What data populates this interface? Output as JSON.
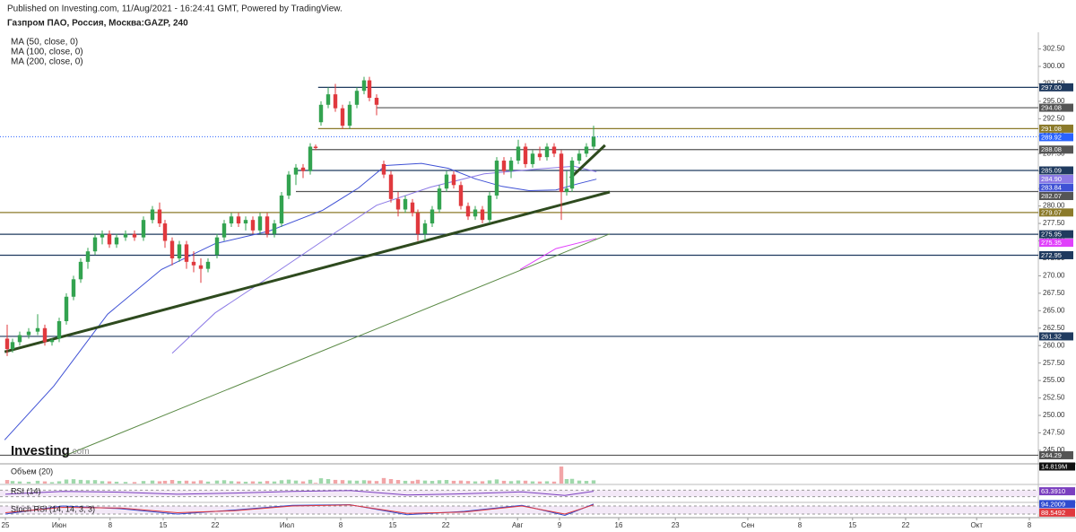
{
  "header": {
    "published": "Published on Investing.com, 11/Aug/2021 - 16:24:41 GMT, Powered by TradingView.",
    "symbol": "Газпром ПАО, Россия, Москва:GAZP, 240",
    "indicators": [
      "MA (50, close, 0)",
      "MA (100, close, 0)",
      "MA (200, close, 0)"
    ]
  },
  "logo": {
    "name": "Investing",
    "suffix": ".com"
  },
  "chart_data": {
    "type": "candlestick",
    "up_color": "#33a350",
    "down_color": "#e0393e",
    "x": [
      0.25,
      1,
      2,
      3.25,
      4.5,
      5.5,
      6.5,
      7.5,
      8.5,
      9.5,
      10.5,
      11.5,
      12.5,
      13.5,
      14.5,
      15.5,
      16.75,
      18,
      19.25,
      20.5,
      21.5,
      22.25,
      23.25,
      24.25,
      25.25,
      26.25,
      27.25,
      28.25,
      29.5,
      30.5,
      31.5,
      32.5,
      33.5,
      34.5,
      35.5,
      36.5,
      37.5,
      38.5,
      39.5,
      40.5,
      41.5,
      42.5,
      43.25,
      44,
      45,
      46,
      47,
      48,
      49,
      50,
      50.75,
      51.75,
      52.75,
      53.75,
      54.75,
      55.75,
      56.75,
      57.5,
      58.5,
      59.5,
      60.5,
      61.5,
      62.5,
      63.5,
      64.5,
      65.5,
      66.5,
      67.5,
      68.5,
      69.5,
      70.5,
      71.5,
      72.5,
      73.5,
      74.5,
      75.5,
      76.5,
      77.5,
      78.25,
      79,
      80,
      81,
      82
    ],
    "open": [
      261,
      259.5,
      260.5,
      261.5,
      262,
      262.5,
      260.5,
      261,
      263.5,
      267,
      269.5,
      272,
      273.5,
      275.5,
      276,
      274.5,
      275.5,
      276,
      275.5,
      278,
      279.5,
      277.5,
      275,
      272.5,
      274.5,
      272,
      271.5,
      271,
      273,
      275.5,
      277.5,
      278.5,
      277.5,
      278,
      276.5,
      278.5,
      276,
      277.5,
      281.5,
      284.5,
      285.5,
      285,
      288.5,
      292,
      294.5,
      296,
      294,
      291.5,
      294.5,
      296.5,
      298,
      295.5,
      286,
      284.5,
      281,
      279.5,
      280.5,
      279,
      276,
      277.5,
      279.5,
      282.5,
      284.5,
      283,
      280,
      278.5,
      279.5,
      278,
      281.5,
      286.5,
      285,
      286.5,
      288.5,
      286,
      287.5,
      287,
      288.5,
      287.5,
      282,
      282.5,
      286.5,
      287.5,
      288.5
    ],
    "high": [
      263,
      261,
      262,
      262.5,
      264.5,
      263,
      261,
      264,
      267.5,
      270,
      272.5,
      274,
      276,
      276.5,
      276.5,
      276,
      276.5,
      276.5,
      278.5,
      280,
      280.5,
      278,
      275.5,
      275,
      275,
      273.5,
      272.5,
      272.5,
      276,
      278,
      279,
      279,
      278.5,
      278.5,
      279,
      279,
      278,
      282,
      285,
      286,
      286,
      289,
      288.8,
      295,
      297,
      297.5,
      294.5,
      295,
      297,
      298.5,
      298.5,
      296,
      286.5,
      285,
      282,
      281.5,
      281,
      279.5,
      278,
      280,
      283,
      285,
      285,
      283.5,
      280.5,
      280,
      280,
      282,
      287,
      287,
      287,
      289.5,
      289,
      288,
      288.5,
      289,
      289,
      288,
      285,
      287,
      288,
      289,
      291.5
    ],
    "low": [
      258.5,
      259,
      260,
      261,
      261.5,
      260,
      260,
      260.5,
      263,
      266.5,
      269,
      271,
      273,
      274.5,
      274,
      274,
      275,
      275,
      275,
      277.5,
      277,
      274,
      271.5,
      272,
      271,
      270.5,
      269,
      270.5,
      272.5,
      275,
      277,
      277,
      276.5,
      276,
      276,
      275.5,
      275.5,
      277,
      281,
      283,
      284,
      284.5,
      288,
      291.5,
      294,
      293.5,
      291,
      291,
      294,
      296,
      295,
      293,
      284,
      280.5,
      278.5,
      279,
      278.5,
      275,
      275,
      277,
      279,
      282,
      282.5,
      279.5,
      278,
      278,
      277.5,
      277.5,
      281,
      284.5,
      284,
      286,
      285.5,
      285.5,
      286.5,
      286.5,
      287,
      278,
      281.5,
      282,
      286,
      287,
      288
    ],
    "close": [
      259.5,
      260.5,
      261.5,
      262,
      262.5,
      260.5,
      260.8,
      263.5,
      267,
      269.5,
      272,
      273.5,
      275.5,
      276,
      274.5,
      275.5,
      276,
      275.5,
      278,
      279.5,
      277.5,
      275,
      272.5,
      274.5,
      272,
      271.5,
      271,
      272,
      275.5,
      277.5,
      278.5,
      277.5,
      278,
      276.5,
      278.5,
      276,
      277.5,
      281.5,
      284.5,
      285.5,
      285,
      288.5,
      288.3,
      294.5,
      296,
      294,
      291.5,
      294.5,
      296.5,
      298,
      295.5,
      294.5,
      284.5,
      281,
      279.5,
      281,
      279,
      276,
      277.5,
      279.5,
      282.5,
      284.5,
      283,
      280,
      278.5,
      279.5,
      278,
      281.5,
      286.5,
      285,
      286.5,
      288.5,
      286,
      287.5,
      287,
      288.5,
      287.5,
      282,
      282.5,
      286.5,
      287.5,
      288.5,
      289.92
    ],
    "xlim": [
      -0.75,
      144
    ],
    "ylim": [
      243.32,
      304.37
    ],
    "xticks": [
      {
        "value": 0,
        "label": "25"
      },
      {
        "value": 7.5,
        "label": "Июн"
      },
      {
        "value": 14.6,
        "label": "8"
      },
      {
        "value": 22,
        "label": "15"
      },
      {
        "value": 29.25,
        "label": "22"
      },
      {
        "value": 39.25,
        "label": "Июл"
      },
      {
        "value": 46.75,
        "label": "8"
      },
      {
        "value": 54,
        "label": "15"
      },
      {
        "value": 61.4,
        "label": "22"
      },
      {
        "value": 71.4,
        "label": "Авг"
      },
      {
        "value": 77.25,
        "label": "9"
      },
      {
        "value": 85.5,
        "label": "16"
      },
      {
        "value": 93.4,
        "label": "23"
      },
      {
        "value": 103.5,
        "label": "Сен"
      },
      {
        "value": 110.75,
        "label": "8"
      },
      {
        "value": 118.1,
        "label": "15"
      },
      {
        "value": 125.5,
        "label": "22"
      },
      {
        "value": 135.4,
        "label": "Окт"
      },
      {
        "value": 142.75,
        "label": "8"
      }
    ],
    "yticks": [
      {
        "value": 245,
        "label": "245.00"
      },
      {
        "value": 247.5,
        "label": "247.50"
      },
      {
        "value": 250,
        "label": "250.00"
      },
      {
        "value": 252.5,
        "label": "252.50"
      },
      {
        "value": 255,
        "label": "255.00"
      },
      {
        "value": 257.5,
        "label": "257.50"
      },
      {
        "value": 260,
        "label": "260.00"
      },
      {
        "value": 262.5,
        "label": "262.50"
      },
      {
        "value": 265,
        "label": "265.00"
      },
      {
        "value": 267.5,
        "label": "267.50"
      },
      {
        "value": 270,
        "label": "270.00"
      },
      {
        "value": 272.5,
        "label": "272.50"
      },
      {
        "value": 275,
        "label": "275.00"
      },
      {
        "value": 277.5,
        "label": "277.50"
      },
      {
        "value": 280,
        "label": "280.00"
      },
      {
        "value": 282.5,
        "label": "282.50"
      },
      {
        "value": 285,
        "label": "285.00"
      },
      {
        "value": 287.5,
        "label": "287.50"
      },
      {
        "value": 290,
        "label": "290.00"
      },
      {
        "value": 292.5,
        "label": "292.50"
      },
      {
        "value": 295,
        "label": "295.00"
      },
      {
        "value": 297.5,
        "label": "297.50"
      },
      {
        "value": 300,
        "label": "300.00"
      },
      {
        "value": 302.5,
        "label": "302.50"
      }
    ],
    "moving_averages": [
      {
        "color": "#3f51d5",
        "x": [
          -0.1,
          6.75,
          14.25,
          21.75,
          29.25,
          36.75,
          44.25,
          49.25,
          53,
          58,
          61.75,
          65.5,
          69.25,
          73,
          76.75,
          79.9,
          82.4
        ],
        "values": [
          246.5,
          254.2,
          264.5,
          270.9,
          274.6,
          276.4,
          279.4,
          282.6,
          285.8,
          286.1,
          285.4,
          283.9,
          282.8,
          282.2,
          282.3,
          283.2,
          283.84
        ],
        "last_label": "283.84"
      },
      {
        "color": "#8c7ae6",
        "x": [
          23.25,
          29.25,
          36.75,
          44.25,
          51.75,
          59.25,
          66.75,
          74.25,
          79.25,
          82.4
        ],
        "values": [
          258.9,
          264.7,
          269.8,
          275,
          280.1,
          282.7,
          284.6,
          285.3,
          285.7,
          284.9
        ],
        "last_label": "284.90"
      },
      {
        "color": "#e040fb",
        "x": [
          71.75,
          76.75,
          82.4
        ],
        "values": [
          270.9,
          273.9,
          275.35
        ],
        "last_label": "275.35"
      }
    ],
    "levels": [
      {
        "value": 297,
        "label": "297.00",
        "color": "#1f3a5f",
        "x0": 43.6
      },
      {
        "value": 294.08,
        "label": "294.08",
        "color": "#555555",
        "x0": 51.75
      },
      {
        "value": 291.08,
        "label": "291.08",
        "color": "#8b7a2a",
        "x0": 43.6
      },
      {
        "value": 288.08,
        "label": "288.08",
        "color": "#555555",
        "x0": 42.4
      },
      {
        "value": 285.09,
        "label": "285.09",
        "color": "#1f3a5f",
        "x0": 40.5
      },
      {
        "value": 282.07,
        "label": "282.07",
        "color": "#555555",
        "x0": 40.5
      },
      {
        "value": 279.07,
        "label": "279.07",
        "color": "#8b7a2a",
        "x0": -0.75
      },
      {
        "value": 275.95,
        "label": "275.95",
        "color": "#1f3a5f",
        "x0": -0.75
      },
      {
        "value": 272.95,
        "label": "272.95",
        "color": "#1f3a5f",
        "x0": -0.75
      },
      {
        "value": 261.32,
        "label": "261.32",
        "color": "#1f3a5f",
        "x0": -0.75
      },
      {
        "value": 244.29,
        "label": "244.29",
        "color": "#555555",
        "x0": -0.75
      }
    ],
    "current": {
      "value": 289.92,
      "label": "289.92",
      "color": "#2962ff"
    },
    "trend_lines": [
      {
        "color": "#2e4a1e",
        "x": [
          -0.1,
          84.25
        ],
        "y": [
          259.1,
          282
        ]
      },
      {
        "color": "#2e4a1e",
        "x": [
          78.75,
          83.6
        ],
        "y": [
          284,
          288.7
        ]
      }
    ],
    "guide_lines": [
      {
        "color": "#5a8a45",
        "x": [
          8,
          84.25
        ],
        "y": [
          244.1,
          276
        ]
      }
    ]
  },
  "panes": [
    {
      "title": "Объем (20)",
      "type": "bar",
      "ylim": [
        0,
        15.6
      ],
      "max": 14.819,
      "max_label": "14.819M",
      "values": [
        3.1,
        2.2,
        1.8,
        1.5,
        2.4,
        1.9,
        1.2,
        2.0,
        3.5,
        3.8,
        3.2,
        2.9,
        3.0,
        2.1,
        1.9,
        1.6,
        1.4,
        1.3,
        2.2,
        2.6,
        2.0,
        2.4,
        3.1,
        2.3,
        2.5,
        1.9,
        2.8,
        1.7,
        2.6,
        2.9,
        2.1,
        1.8,
        1.6,
        1.9,
        1.7,
        2.2,
        1.8,
        2.9,
        3.4,
        2.6,
        1.9,
        3.3,
        0.6,
        4.6,
        3.9,
        3.2,
        3.0,
        2.7,
        2.5,
        2.9,
        2.6,
        2.2,
        4.8,
        3.9,
        3.1,
        2.4,
        2.2,
        3.3,
        2.6,
        2.3,
        2.9,
        3.1,
        2.4,
        2.6,
        2.2,
        1.9,
        2.0,
        2.8,
        3.6,
        2.4,
        2.1,
        2.7,
        2.5,
        1.9,
        1.8,
        2.0,
        1.7,
        14.819,
        3.9,
        4.1,
        2.6,
        2.3,
        2.8
      ]
    },
    {
      "title": "RSI (14)",
      "type": "line",
      "ylim": [
        0,
        100
      ],
      "bands": [
        30,
        70
      ],
      "series": [
        {
          "color": "#7b3fbf",
          "x": [
            0,
            8,
            16,
            24,
            32,
            40,
            48,
            56,
            64,
            72,
            78,
            82
          ],
          "values": [
            45,
            62,
            58,
            45,
            52,
            62,
            68,
            40,
            48,
            60,
            38,
            63.391
          ],
          "last_label": "63.3910"
        }
      ]
    },
    {
      "title": "Stoch RSI (14, 14, 3, 3)",
      "type": "line",
      "ylim": [
        0,
        100
      ],
      "bands": [
        20,
        80
      ],
      "series": [
        {
          "color": "#2f4bd0",
          "x": [
            0,
            8,
            16,
            24,
            32,
            40,
            48,
            56,
            64,
            72,
            78,
            82
          ],
          "values": [
            20,
            80,
            60,
            20,
            50,
            85,
            90,
            15,
            40,
            85,
            10,
            94.2009
          ],
          "last_label": "94.2009"
        },
        {
          "color": "#e0393e",
          "x": [
            0,
            8,
            16,
            24,
            32,
            40,
            48,
            56,
            64,
            72,
            78,
            82
          ],
          "values": [
            30,
            70,
            65,
            30,
            45,
            80,
            88,
            25,
            35,
            80,
            20,
            88.5492
          ],
          "last_label": "88.5492"
        }
      ]
    }
  ]
}
